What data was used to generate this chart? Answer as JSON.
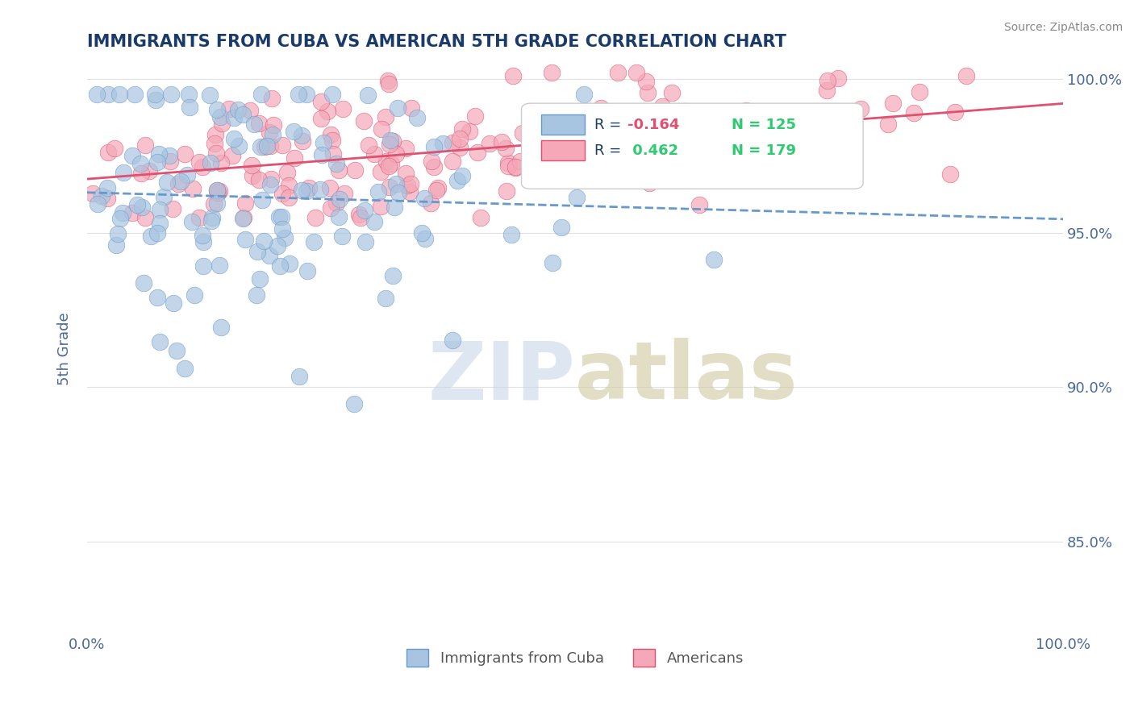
{
  "title": "IMMIGRANTS FROM CUBA VS AMERICAN 5TH GRADE CORRELATION CHART",
  "source": "Source: ZipAtlas.com",
  "xlabel": "",
  "ylabel": "5th Grade",
  "xlim": [
    0.0,
    1.0
  ],
  "ylim": [
    0.82,
    1.005
  ],
  "yticks": [
    0.85,
    0.9,
    0.95,
    1.0
  ],
  "ytick_labels": [
    "85.0%",
    "90.0%",
    "95.0%",
    "100.0%"
  ],
  "xticks": [
    0.0,
    0.2,
    0.4,
    0.6,
    0.8,
    1.0
  ],
  "xtick_labels": [
    "0.0%",
    "",
    "",
    "",
    "",
    "100.0%"
  ],
  "blue_R": -0.164,
  "blue_N": 125,
  "pink_R": 0.462,
  "pink_N": 179,
  "blue_color": "#a8c4e0",
  "pink_color": "#f4a8b8",
  "blue_line_color": "#6699cc",
  "pink_line_color": "#e05070",
  "legend_label_blue": "Immigrants from Cuba",
  "legend_label_pink": "Americans",
  "watermark": "ZIPatlas",
  "watermark_color_zip": "#c8d8e8",
  "watermark_color_atlas": "#d0c8a0",
  "title_color": "#1a3a6a",
  "axis_label_color": "#4a6a9a",
  "tick_color": "#4a6a9a",
  "grid_color": "#e0e0e0",
  "background_color": "#ffffff",
  "seed": 42
}
